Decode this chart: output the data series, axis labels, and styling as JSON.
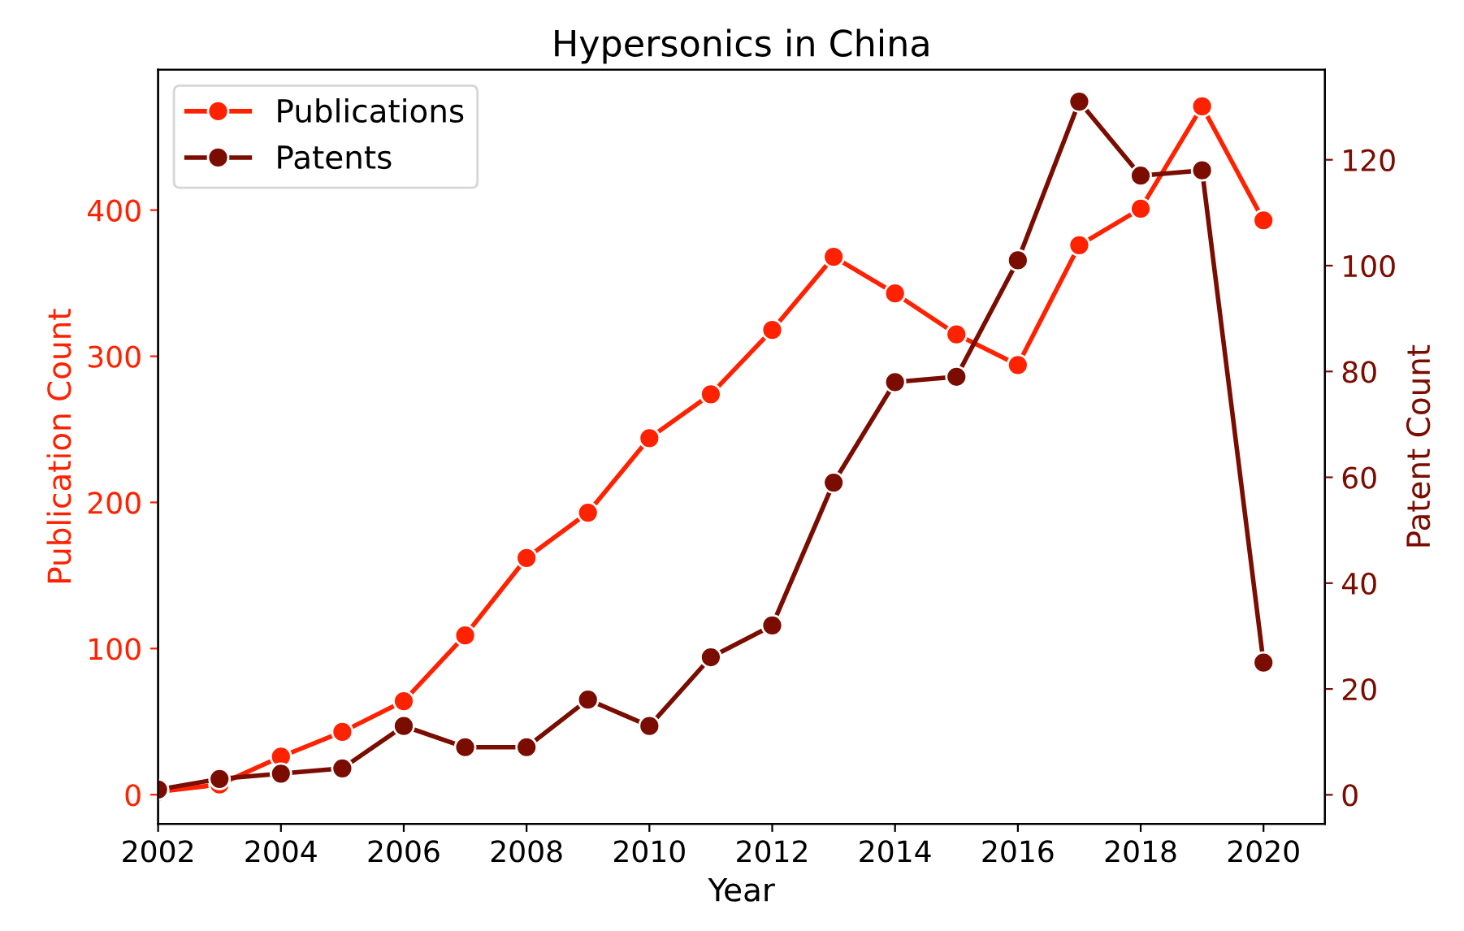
{
  "chart_data": {
    "type": "line",
    "title": "Hypersonics in China",
    "xlabel": "Year",
    "ylabel": "Publication Count",
    "y2label": "Patent Count",
    "x": [
      2002,
      2003,
      2004,
      2005,
      2006,
      2007,
      2008,
      2009,
      2010,
      2011,
      2012,
      2013,
      2014,
      2015,
      2016,
      2017,
      2018,
      2019,
      2020
    ],
    "series": [
      {
        "name": "Publications",
        "color": "#ff2200",
        "values": [
          2,
          7,
          26,
          43,
          64,
          109,
          162,
          193,
          244,
          274,
          318,
          368,
          343,
          315,
          294,
          376,
          401,
          471,
          393
        ]
      },
      {
        "name": "Patents",
        "color": "#7a0c00",
        "axis": "y2",
        "values": [
          1,
          3,
          4,
          5,
          13,
          9,
          9,
          18,
          13,
          26,
          32,
          59,
          78,
          79,
          101,
          131,
          117,
          118,
          25
        ]
      }
    ],
    "xlim": [
      2002,
      2021
    ],
    "xticks": [
      2002,
      2004,
      2006,
      2008,
      2010,
      2012,
      2014,
      2016,
      2018,
      2020
    ],
    "ylim": [
      -20,
      496
    ],
    "yticks": [
      0,
      100,
      200,
      300,
      400
    ],
    "y2lim": [
      -5.5,
      137
    ],
    "y2ticks": [
      0,
      20,
      40,
      60,
      80,
      100,
      120
    ],
    "marker": "circle",
    "line_style": "solid",
    "legend": "top left",
    "grid": false
  }
}
